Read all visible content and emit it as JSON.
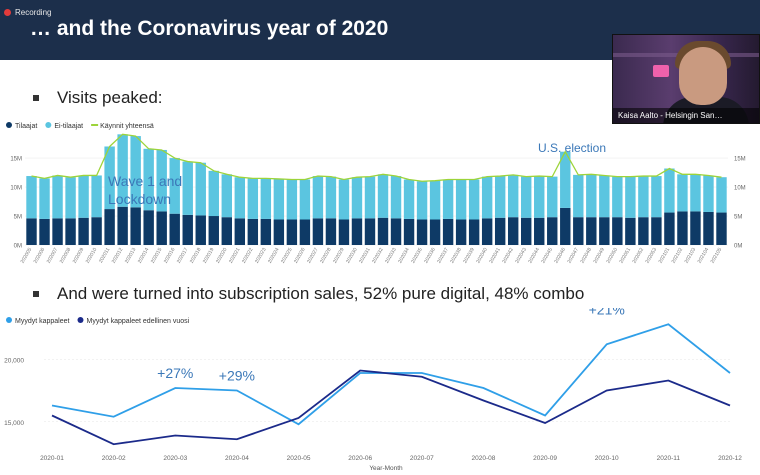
{
  "recording": {
    "label": "Recording"
  },
  "slide": {
    "title": "… and the Coronavirus year of 2020",
    "bullet1": "Visits peaked:",
    "bullet2": "And were turned into subscription sales, 52% pure digital, 48% combo"
  },
  "webcam": {
    "name": "Kaisa Aalto - Helsingin San…"
  },
  "colors": {
    "header_bg": "#1c2f4b",
    "dark_bar": "#0e3a66",
    "light_bar": "#5bc5e0",
    "total_line": "#9dd43a",
    "light_line": "#2f9fe8",
    "dark_line": "#1b2a8a",
    "annotation": "#3b78b8"
  },
  "chart_data": [
    {
      "type": "bar",
      "legend": [
        "Tilaajat",
        "Ei-tilaajat",
        "Käynnit yhteensä"
      ],
      "categories": [
        "202005",
        "202006",
        "202007",
        "202008",
        "202009",
        "202010",
        "202011",
        "202012",
        "202013",
        "202014",
        "202015",
        "202016",
        "202017",
        "202018",
        "202019",
        "202020",
        "202021",
        "202022",
        "202023",
        "202024",
        "202025",
        "202026",
        "202027",
        "202028",
        "202029",
        "202030",
        "202031",
        "202032",
        "202033",
        "202034",
        "202035",
        "202036",
        "202037",
        "202038",
        "202039",
        "202040",
        "202041",
        "202042",
        "202043",
        "202044",
        "202045",
        "202046",
        "202047",
        "202048",
        "202049",
        "202050",
        "202051",
        "202052",
        "202053",
        "202101",
        "202102",
        "202103",
        "202104",
        "202105"
      ],
      "series": [
        {
          "name": "Tilaajat",
          "values": [
            4.6,
            4.5,
            4.6,
            4.6,
            4.7,
            4.8,
            6.2,
            6.6,
            6.5,
            6.0,
            5.8,
            5.4,
            5.2,
            5.1,
            5.0,
            4.8,
            4.6,
            4.5,
            4.5,
            4.4,
            4.4,
            4.4,
            4.6,
            4.6,
            4.4,
            4.6,
            4.6,
            4.7,
            4.6,
            4.5,
            4.4,
            4.4,
            4.5,
            4.4,
            4.4,
            4.6,
            4.7,
            4.8,
            4.7,
            4.7,
            4.8,
            6.4,
            4.8,
            4.8,
            4.8,
            4.8,
            4.7,
            4.8,
            4.8,
            5.6,
            5.8,
            5.8,
            5.7,
            5.6
          ]
        },
        {
          "name": "Ei-tilaajat",
          "values": [
            7.3,
            7.0,
            7.4,
            7.1,
            7.3,
            7.2,
            10.8,
            12.5,
            12.3,
            10.6,
            10.6,
            9.6,
            9.2,
            9.1,
            7.8,
            7.4,
            7.1,
            7.0,
            7.0,
            7.0,
            6.9,
            6.9,
            7.3,
            7.2,
            6.9,
            7.1,
            7.2,
            7.5,
            7.3,
            6.8,
            6.6,
            6.7,
            6.8,
            6.9,
            6.9,
            7.2,
            7.2,
            7.3,
            7.1,
            7.2,
            7.0,
            9.7,
            7.3,
            7.4,
            7.2,
            7.0,
            7.1,
            7.1,
            7.1,
            7.6,
            6.4,
            6.4,
            6.3,
            6.1
          ]
        },
        {
          "name": "Käynnit yhteensä",
          "values": [
            11.9,
            11.5,
            12.0,
            11.7,
            12.0,
            12.0,
            17.0,
            19.1,
            18.8,
            16.6,
            16.4,
            15.0,
            14.4,
            14.2,
            12.8,
            12.2,
            11.7,
            11.5,
            11.5,
            11.4,
            11.3,
            11.3,
            11.9,
            11.8,
            11.3,
            11.7,
            11.8,
            12.2,
            11.9,
            11.3,
            11.0,
            11.1,
            11.3,
            11.3,
            11.3,
            11.8,
            11.9,
            12.1,
            11.8,
            11.9,
            11.8,
            16.1,
            12.1,
            12.2,
            12.0,
            11.8,
            11.8,
            11.9,
            11.9,
            13.2,
            12.2,
            12.2,
            12.0,
            11.7
          ]
        }
      ],
      "yticks": [
        "0M",
        "5M",
        "10M",
        "15M"
      ],
      "ylim": [
        0,
        19.5
      ],
      "annotations": [
        "Wave 1 and Lockdown",
        "U.S. election"
      ]
    },
    {
      "type": "line",
      "legend": [
        "Myydyt kappaleet",
        "Myydyt kappaleet edellinen vuosi"
      ],
      "categories": [
        "2020-01",
        "2020-02",
        "2020-03",
        "2020-04",
        "2020-05",
        "2020-06",
        "2020-07",
        "2020-08",
        "2020-09",
        "2020-10",
        "2020-11",
        "2020-12"
      ],
      "series": [
        {
          "name": "Myydyt kappaleet",
          "values": [
            16300,
            15400,
            17700,
            17500,
            14800,
            18900,
            18900,
            17700,
            15500,
            21200,
            22800,
            18900
          ]
        },
        {
          "name": "Myydyt kappaleet edellinen vuosi",
          "values": [
            15500,
            13200,
            13900,
            13600,
            15300,
            19100,
            18600,
            16700,
            14900,
            17500,
            18300,
            16300
          ]
        }
      ],
      "yticks": [
        "15,000",
        "20,000"
      ],
      "ylim": [
        12500,
        23700
      ],
      "xlabel": "Year-Month",
      "annotations": [
        "+27%",
        "+29%",
        "+21%",
        "+29%"
      ]
    }
  ]
}
